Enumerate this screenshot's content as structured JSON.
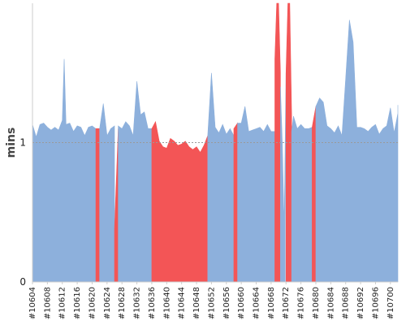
{
  "chart_data": {
    "type": "area",
    "title": "",
    "xlabel": "",
    "ylabel": "mins",
    "ylim": [
      0,
      2
    ],
    "yticks": [
      0,
      1
    ],
    "x_tick_labels": [
      "#10604",
      "#10608",
      "#10612",
      "#10616",
      "#10620",
      "#10624",
      "#10628",
      "#10632",
      "#10636",
      "#10640",
      "#10644",
      "#10648",
      "#10652",
      "#10656",
      "#10660",
      "#10664",
      "#10668",
      "#10672",
      "#10676",
      "#10680",
      "#10684",
      "#10688",
      "#10692",
      "#10696",
      "#10700"
    ],
    "reference_line": 1,
    "grid": false,
    "colors": {
      "normal": "#8db0dc",
      "failed": "#f35556",
      "reference_line": "#9a9a9a",
      "axis": "#cccccc"
    },
    "x_start": 10604,
    "x_end": 10702,
    "segments": [
      {
        "status": "normal",
        "points": [
          [
            10604,
            1.13
          ],
          [
            10605,
            1.04
          ],
          [
            10606,
            1.13
          ],
          [
            10607,
            1.14
          ],
          [
            10608,
            1.11
          ],
          [
            10609,
            1.09
          ],
          [
            10610,
            1.11
          ],
          [
            10611,
            1.09
          ],
          [
            10612,
            1.16
          ],
          [
            10612.5,
            1.6
          ],
          [
            10613,
            1.13
          ],
          [
            10614,
            1.14
          ],
          [
            10615,
            1.08
          ],
          [
            10616,
            1.12
          ],
          [
            10617,
            1.11
          ],
          [
            10618,
            1.05
          ],
          [
            10619,
            1.11
          ],
          [
            10620,
            1.12
          ],
          [
            10621,
            1.1
          ]
        ]
      },
      {
        "status": "failed",
        "points": [
          [
            10621,
            1.1
          ],
          [
            10622,
            1.1
          ]
        ]
      },
      {
        "status": "normal",
        "points": [
          [
            10622,
            1.1
          ],
          [
            10623,
            1.28
          ],
          [
            10624,
            1.05
          ],
          [
            10625,
            1.1
          ],
          [
            10626,
            1.12
          ]
        ]
      },
      {
        "status": "failed",
        "points": [
          [
            10626,
            0.38
          ],
          [
            10627,
            1.1
          ]
        ]
      },
      {
        "status": "normal",
        "points": [
          [
            10627,
            1.12
          ],
          [
            10628,
            1.1
          ],
          [
            10629,
            1.15
          ],
          [
            10630,
            1.12
          ],
          [
            10631,
            1.05
          ],
          [
            10632,
            1.44
          ],
          [
            10633,
            1.2
          ],
          [
            10634,
            1.22
          ],
          [
            10635,
            1.1
          ],
          [
            10636,
            1.1
          ]
        ]
      },
      {
        "status": "failed",
        "points": [
          [
            10636,
            1.1
          ],
          [
            10637,
            1.15
          ],
          [
            10638,
            1.01
          ],
          [
            10639,
            0.97
          ],
          [
            10640,
            0.96
          ],
          [
            10641,
            1.03
          ],
          [
            10642,
            1.01
          ],
          [
            10643,
            0.98
          ],
          [
            10644,
            0.99
          ],
          [
            10645,
            1.01
          ],
          [
            10646,
            0.97
          ],
          [
            10647,
            0.95
          ],
          [
            10648,
            0.97
          ],
          [
            10649,
            0.93
          ],
          [
            10650,
            0.98
          ],
          [
            10651,
            1.05
          ]
        ]
      },
      {
        "status": "normal",
        "points": [
          [
            10651,
            1.05
          ],
          [
            10652,
            1.5
          ],
          [
            10653,
            1.11
          ],
          [
            10654,
            1.07
          ],
          [
            10655,
            1.13
          ],
          [
            10656,
            1.06
          ],
          [
            10657,
            1.1
          ],
          [
            10658,
            1.05
          ]
        ]
      },
      {
        "status": "failed",
        "points": [
          [
            10658,
            1.1
          ],
          [
            10659,
            1.14
          ]
        ]
      },
      {
        "status": "normal",
        "points": [
          [
            10659,
            1.14
          ],
          [
            10660,
            1.14
          ],
          [
            10661,
            1.26
          ],
          [
            10662,
            1.08
          ],
          [
            10663,
            1.09
          ],
          [
            10664,
            1.1
          ],
          [
            10665,
            1.11
          ],
          [
            10666,
            1.08
          ],
          [
            10667,
            1.13
          ],
          [
            10668,
            1.08
          ],
          [
            10669,
            1.08
          ]
        ]
      },
      {
        "status": "failed",
        "points": [
          [
            10669,
            1.6
          ],
          [
            10669.5,
            2.0
          ],
          [
            10670,
            2.0
          ],
          [
            10670.5,
            1.5
          ]
        ]
      },
      {
        "status": "normal",
        "points": [
          [
            10670.5,
            1.4
          ],
          [
            10671,
            1.0
          ],
          [
            10671.5,
            0.4
          ],
          [
            10672,
            1.5
          ],
          [
            10671.8,
            0.4
          ]
        ]
      },
      {
        "status": "failed",
        "points": [
          [
            10672,
            1.5
          ],
          [
            10672.5,
            2.0
          ],
          [
            10673,
            2.0
          ],
          [
            10673.5,
            1.2
          ]
        ]
      },
      {
        "status": "normal",
        "points": [
          [
            10673.5,
            1.08
          ],
          [
            10674,
            1.19
          ],
          [
            10675,
            1.1
          ],
          [
            10676,
            1.13
          ],
          [
            10677,
            1.1
          ],
          [
            10678,
            1.1
          ],
          [
            10679,
            1.11
          ]
        ]
      },
      {
        "status": "failed",
        "points": [
          [
            10679,
            1.11
          ],
          [
            10680,
            1.26
          ]
        ]
      },
      {
        "status": "normal",
        "points": [
          [
            10680,
            1.26
          ],
          [
            10681,
            1.32
          ],
          [
            10682,
            1.29
          ],
          [
            10683,
            1.12
          ],
          [
            10684,
            1.1
          ],
          [
            10685,
            1.07
          ],
          [
            10686,
            1.12
          ],
          [
            10687,
            1.05
          ],
          [
            10688,
            1.46
          ],
          [
            10689,
            1.88
          ],
          [
            10690,
            1.72
          ],
          [
            10691,
            1.11
          ],
          [
            10692,
            1.11
          ],
          [
            10693,
            1.1
          ],
          [
            10694,
            1.08
          ],
          [
            10695,
            1.11
          ],
          [
            10696,
            1.13
          ],
          [
            10697,
            1.06
          ],
          [
            10698,
            1.1
          ],
          [
            10699,
            1.12
          ],
          [
            10700,
            1.25
          ],
          [
            10701,
            1.07
          ],
          [
            10702,
            1.21
          ],
          [
            10703,
            1.2
          ],
          [
            10704,
            1.27
          ],
          [
            10705,
            1.14
          ]
        ]
      }
    ]
  }
}
